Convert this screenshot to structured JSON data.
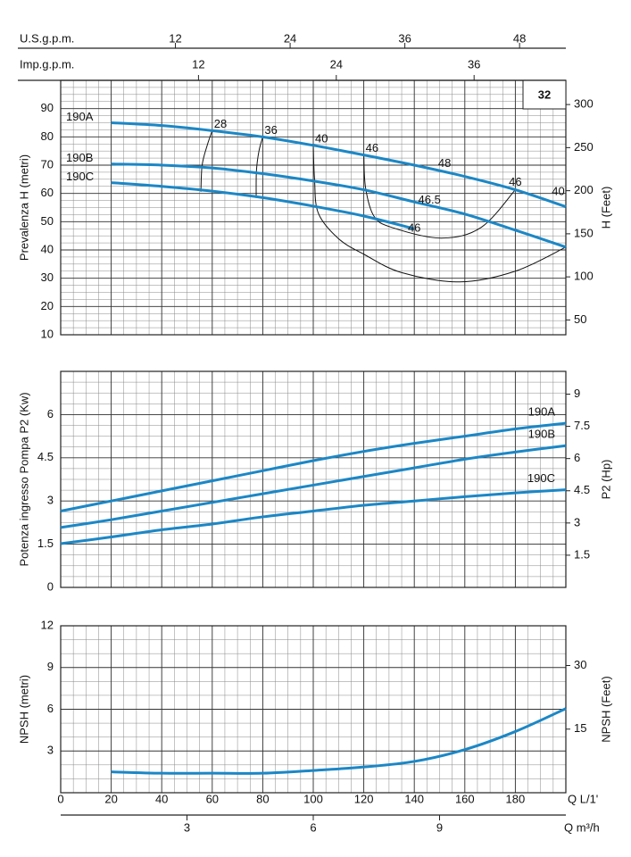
{
  "chart_data": [
    {
      "type": "line",
      "y_label": "Prevalenza H (metri)",
      "y2_label": "H (Feet)",
      "badge": "32",
      "x": [
        20,
        40,
        60,
        80,
        100,
        120,
        140,
        160,
        180,
        200
      ],
      "xlim": [
        0,
        200
      ],
      "xticks": [
        20,
        40,
        60,
        80,
        100,
        120,
        140,
        160,
        180
      ],
      "x_tick_labels": false,
      "ylim": [
        10,
        100
      ],
      "yticks": [
        10,
        20,
        30,
        40,
        50,
        60,
        70,
        80,
        90
      ],
      "y2lim": [
        32.81,
        328.08
      ],
      "y2ticks": [
        50,
        100,
        150,
        200,
        250,
        300
      ],
      "grid": true,
      "minor_grid": {
        "x": 5,
        "y": 2.5
      },
      "series_label_side": "start",
      "us_gpm": {
        "label": "U.S.g.p.m.",
        "lim": [
          0,
          52.84
        ],
        "ticks": [
          12,
          24,
          36,
          48
        ]
      },
      "imp_gpm": {
        "label": "Imp.g.p.m.",
        "lim": [
          0,
          43.99
        ],
        "ticks": [
          12,
          24,
          36
        ]
      },
      "series": [
        {
          "name": "190A",
          "color": "#1b87c6",
          "values": [
            85,
            84,
            82.2,
            80,
            77,
            73.6,
            70,
            66,
            61.3,
            55.3
          ]
        },
        {
          "name": "190B",
          "color": "#1b87c6",
          "values": [
            70.4,
            70,
            69,
            67,
            64.4,
            61.3,
            57,
            52.7,
            47,
            41
          ]
        },
        {
          "name": "190C",
          "color": "#1b87c6",
          "values": [
            63.8,
            62.5,
            60.8,
            58.5,
            55.5,
            52,
            47.5,
            null,
            null,
            null
          ]
        }
      ],
      "efficiency_curves": [
        {
          "label": "28",
          "x": [
            60,
            58,
            56,
            55.5
          ],
          "y": [
            82.2,
            77,
            70,
            60.6
          ]
        },
        {
          "label": "36",
          "x": [
            80,
            78.5,
            77.5,
            77.4
          ],
          "y": [
            80,
            75,
            68,
            58.4
          ]
        },
        {
          "label": "40",
          "x": [
            100,
            100.5,
            102,
            110,
            120,
            135,
            158,
            180,
            200
          ],
          "y": [
            77,
            65,
            53,
            44,
            38.5,
            32,
            28.7,
            32.5,
            41
          ]
        },
        {
          "label": "46",
          "x": [
            120,
            120.7,
            124,
            131,
            150.7,
            166.5,
            180
          ],
          "y": [
            73.6,
            62,
            52,
            48,
            44.2,
            48,
            61.3
          ]
        }
      ],
      "efficiency_points": [
        {
          "label": "48",
          "x": 152,
          "y": 68
        },
        {
          "label": "46.5",
          "x": 146,
          "y": 55
        },
        {
          "label": "46",
          "x": 140,
          "y": 45
        },
        {
          "label": "46",
          "x": 180,
          "y": 61.3
        },
        {
          "label": "40",
          "x": 197,
          "y": 58
        }
      ]
    },
    {
      "type": "line",
      "y_label": "Potenza ingresso Pompa P2 (Kw)",
      "y2_label": "P2 (Hp)",
      "x": [
        0,
        20,
        40,
        60,
        80,
        100,
        120,
        140,
        160,
        180,
        200
      ],
      "xlim": [
        0,
        200
      ],
      "xticks": [
        20,
        40,
        60,
        80,
        100,
        120,
        140,
        160,
        180
      ],
      "x_tick_labels": false,
      "ylim": [
        0,
        7.5
      ],
      "yticks": [
        0,
        1.5,
        3,
        4.5,
        6
      ],
      "y2lim": [
        0,
        10.06
      ],
      "y2ticks": [
        1.5,
        3,
        4.5,
        6,
        7.5,
        9
      ],
      "grid": true,
      "minor_grid": {
        "x": 5,
        "y": 0.375
      },
      "series_label_side": "end",
      "series": [
        {
          "name": "190A",
          "color": "#1b87c6",
          "values": [
            2.65,
            3.0,
            3.35,
            3.7,
            4.05,
            4.4,
            4.72,
            5.0,
            5.25,
            5.5,
            5.7
          ]
        },
        {
          "name": "190B",
          "color": "#1b87c6",
          "values": [
            2.08,
            2.35,
            2.65,
            2.95,
            3.25,
            3.55,
            3.85,
            4.15,
            4.45,
            4.7,
            4.92
          ]
        },
        {
          "name": "190C",
          "color": "#1b87c6",
          "values": [
            1.52,
            1.75,
            2.0,
            2.2,
            2.45,
            2.65,
            2.85,
            3.0,
            3.15,
            3.28,
            3.39
          ]
        }
      ]
    },
    {
      "type": "line",
      "y_label": "NPSH (metri)",
      "y2_label": "NPSH (Feet)",
      "x": [
        20,
        40,
        60,
        80,
        100,
        120,
        140,
        160,
        180,
        200
      ],
      "xlim": [
        0,
        200
      ],
      "xticks": [
        0,
        20,
        40,
        60,
        80,
        100,
        120,
        140,
        160,
        180
      ],
      "x_tick_labels": true,
      "x_label": "Q L/1'",
      "ylim": [
        0,
        12
      ],
      "yticks": [
        3,
        6,
        9,
        12
      ],
      "y2lim": [
        0,
        39.37
      ],
      "y2ticks": [
        15,
        30
      ],
      "grid": true,
      "minor_grid": {
        "x": 5,
        "y": 1
      },
      "m3h": {
        "label": "Q m³/h",
        "lim": [
          0,
          12
        ],
        "ticks": [
          3,
          6,
          9
        ]
      },
      "series": [
        {
          "color": "#1b87c6",
          "values": [
            1.5,
            1.4,
            1.4,
            1.4,
            1.6,
            1.85,
            2.25,
            3.1,
            4.4,
            6.05
          ]
        }
      ]
    }
  ]
}
